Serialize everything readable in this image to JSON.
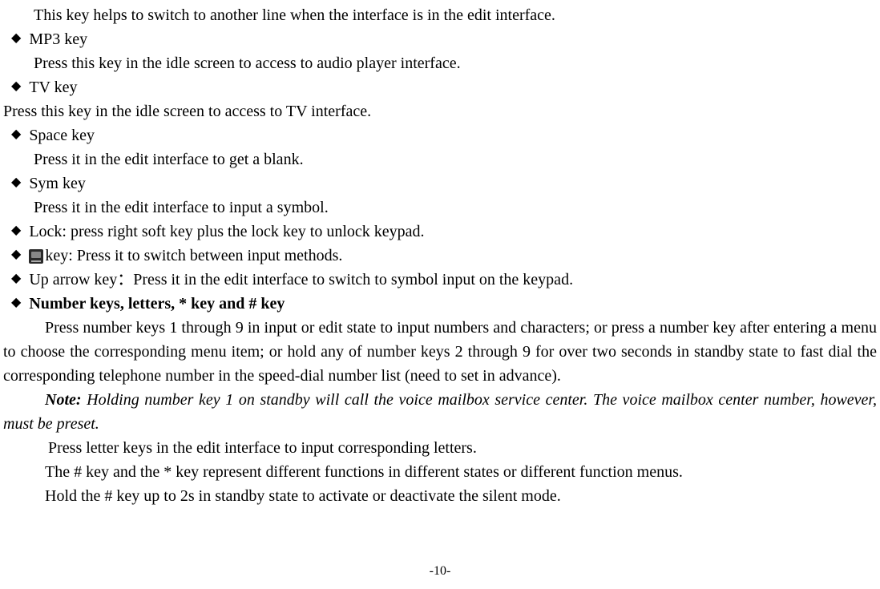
{
  "line_switch_desc": "This key helps to switch to another line when the interface is in the edit interface.",
  "mp3_key_title": "MP3 key",
  "mp3_key_desc": "Press this key in the idle screen to access to audio player interface.",
  "tv_key_title": "TV key",
  "tv_key_desc": "Press this key in the idle screen to access to TV interface.",
  "space_key_title": "Space key",
  "space_key_desc": "Press it in the edit interface to get a blank.",
  "sym_key_title": "Sym key",
  "sym_key_desc": "Press it in the edit interface to input a symbol.",
  "lock_key_desc": "Lock: press right soft key plus the lock key to unlock keypad.",
  "input_method_key_desc": "key: Press it to switch between input methods.",
  "up_arrow_key_desc": "Up arrow key：Press it in the edit interface to switch to symbol input on the keypad.",
  "number_keys_title": "Number keys, letters, * key and # key",
  "number_keys_para": "Press number keys 1 through 9 in input or edit state to input numbers and characters; or press a number key after entering a menu to choose the corresponding menu item; or hold any of number keys 2 through 9 for over two seconds in standby state to fast dial the corresponding telephone number in the speed-dial number list (need to set in advance).",
  "note_label": "Note:",
  "note_text": " Holding number key 1 on standby will call the voice mailbox service center. The voice mailbox center number, however, must be preset.",
  "letter_keys_desc": "Press letter keys in the edit interface to input corresponding letters.",
  "hash_star_desc": "The # key and the * key represent different functions in different states or different function menus.",
  "hash_hold_desc": "Hold the # key up to 2s in standby state to activate or deactivate the silent mode.",
  "page_number": "-10-"
}
